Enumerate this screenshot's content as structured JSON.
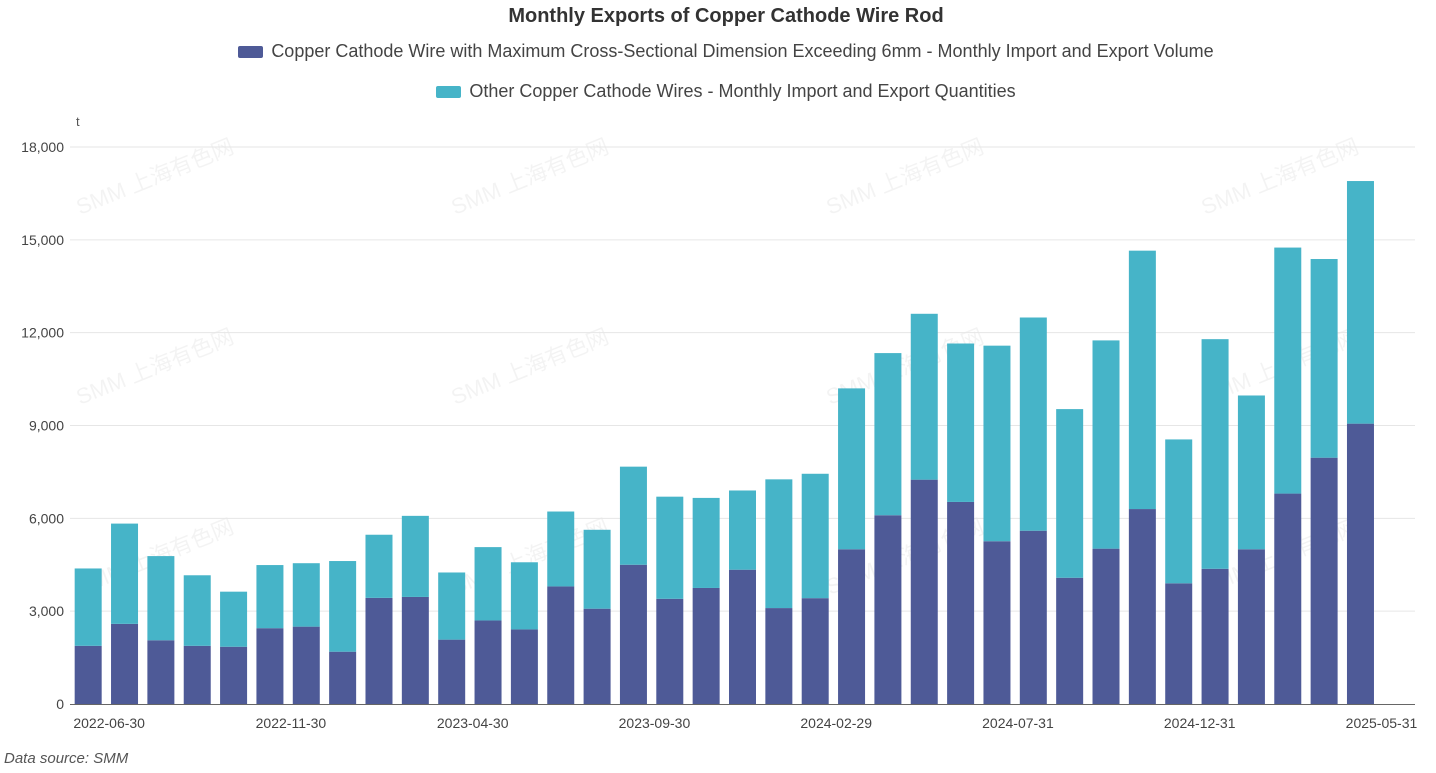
{
  "colors": {
    "series1": "#4e5a97",
    "series2": "#46b4c8",
    "grid": "#e6e6e6",
    "axis": "#666666",
    "text": "#444444"
  },
  "watermark_text": "SMM 上海有色网",
  "source_text": "Data source:  SMM",
  "chart_data": {
    "type": "bar",
    "stacked": true,
    "title": "Monthly Exports of Copper Cathode Wire Rod",
    "ylabel": "t",
    "xlabel": "",
    "ylim": [
      0,
      18000
    ],
    "yticks": [
      0,
      3000,
      6000,
      9000,
      12000,
      15000,
      18000
    ],
    "ytick_labels": [
      "0",
      "3,000",
      "6,000",
      "9,000",
      "12,000",
      "15,000",
      "18,000"
    ],
    "grid": true,
    "legend_position": "top",
    "categories": [
      "2022-06-30",
      "2022-07-31",
      "2022-08-31",
      "2022-09-30",
      "2022-10-31",
      "2022-11-30",
      "2022-12-31",
      "2023-01-31",
      "2023-02-28",
      "2023-03-31",
      "2023-04-30",
      "2023-05-31",
      "2023-06-30",
      "2023-07-31",
      "2023-08-31",
      "2023-09-30",
      "2023-10-31",
      "2023-11-30",
      "2023-12-31",
      "2024-01-31",
      "2024-02-29",
      "2024-03-31",
      "2024-04-30",
      "2024-05-31",
      "2024-06-30",
      "2024-07-31",
      "2024-08-31",
      "2024-09-30",
      "2024-10-31",
      "2024-11-30",
      "2024-12-31",
      "2025-01-31",
      "2025-02-28",
      "2025-03-31",
      "2025-04-30",
      "2025-05-31",
      "2025-06-30"
    ],
    "xtick_labels": [
      {
        "index": 0,
        "label": "2022-06-30"
      },
      {
        "index": 5,
        "label": "2022-11-30"
      },
      {
        "index": 10,
        "label": "2023-04-30"
      },
      {
        "index": 15,
        "label": "2023-09-30"
      },
      {
        "index": 20,
        "label": "2024-02-29"
      },
      {
        "index": 25,
        "label": "2024-07-31"
      },
      {
        "index": 30,
        "label": "2024-12-31"
      },
      {
        "index": 35,
        "label": "2025-05-31"
      }
    ],
    "series": [
      {
        "name": "Copper Cathode Wire with Maximum Cross-Sectional Dimension Exceeding 6mm - Monthly Import and Export Volume",
        "values": [
          1880,
          2590,
          2060,
          1880,
          1850,
          2450,
          2500,
          1690,
          3430,
          3460,
          2080,
          2700,
          2410,
          3800,
          3080,
          4500,
          3400,
          3750,
          4340,
          3100,
          3420,
          5000,
          6100,
          7250,
          6530,
          5260,
          5600,
          4080,
          5020,
          6300,
          3900,
          4370,
          5000,
          6800,
          7960,
          9060,
          0
        ]
      },
      {
        "name": "Other Copper Cathode Wires - Monthly Import and Export Quantities",
        "values": [
          2500,
          3240,
          2720,
          2280,
          1780,
          2040,
          2050,
          2930,
          2040,
          2620,
          2170,
          2370,
          2170,
          2420,
          2550,
          3170,
          3300,
          2910,
          2560,
          4160,
          4020,
          5200,
          5240,
          5360,
          5120,
          6320,
          6890,
          5450,
          6730,
          8350,
          4650,
          7420,
          4970,
          7950,
          6420,
          7840,
          0
        ]
      }
    ]
  }
}
